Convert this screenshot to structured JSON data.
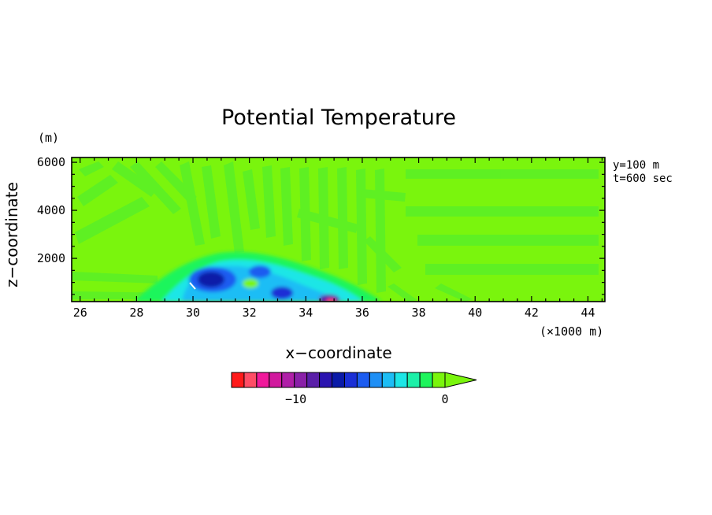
{
  "chart_data": {
    "type": "heatmap",
    "title": "Potential Temperature",
    "xlabel": "x−coordinate",
    "ylabel": "z−coordinate",
    "x_unit": "(×1000 m)",
    "y_unit": "(m)",
    "xlim": [
      25.7,
      44.6
    ],
    "ylim": [
      200,
      6200
    ],
    "x_ticks": [
      26,
      28,
      30,
      32,
      34,
      36,
      38,
      40,
      42,
      44
    ],
    "y_ticks": [
      2000,
      4000,
      6000
    ],
    "x_minor_step": 0.5,
    "y_minor_step": 500,
    "annotations": [
      "y=100 m",
      "t=600 sec"
    ],
    "background_value": -0.3,
    "colorbar": {
      "levels": [
        "-14.5",
        "-13.5",
        "-12.5",
        "-11.5",
        "-10.5",
        "-9.5",
        "-8.5",
        "-7.5",
        "-6.5",
        "-5.5",
        "-4.5",
        "-3.5",
        "-2.5",
        "-1.5",
        "-0.5",
        "0"
      ],
      "colors": [
        "#ff1a1a",
        "#ff4d66",
        "#f0199b",
        "#d1199e",
        "#b01fa8",
        "#8a20a8",
        "#5a1fa8",
        "#2b14b0",
        "#0a1aa8",
        "#1a2fd6",
        "#1c5cf0",
        "#1f8ff5",
        "#1cbdf5",
        "#1ce6e6",
        "#1cf0a8",
        "#1ef55c",
        "#7af50d"
      ],
      "tick_labels": [
        {
          "value": -10,
          "label": "−10"
        },
        {
          "value": 0,
          "label": "0"
        }
      ],
      "extend": "max"
    },
    "features": [
      {
        "name": "cold-core-1",
        "x": 30.6,
        "z": 900,
        "value": -8.5
      },
      {
        "name": "cold-core-2",
        "x": 32.3,
        "z": 1300,
        "value": -7.0
      },
      {
        "name": "cold-core-3",
        "x": 33.7,
        "z": 550,
        "value": -8.0
      },
      {
        "name": "near-surface-min",
        "x": 34.8,
        "z": 320,
        "value": -14.0
      }
    ],
    "grid": false,
    "legend": "colorbar-bottom"
  }
}
